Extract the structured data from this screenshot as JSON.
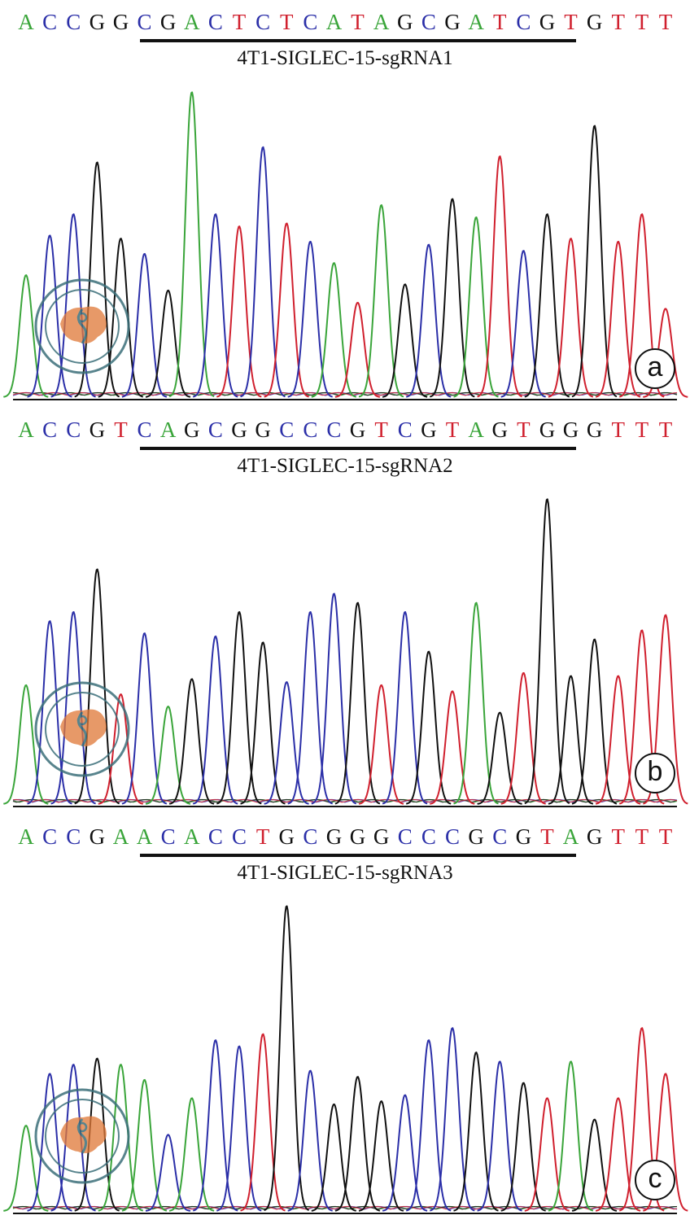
{
  "base_colors": {
    "A": "#3aa53a",
    "C": "#2b2fa8",
    "G": "#111111",
    "T": "#d0202e"
  },
  "seal_colors": {
    "ring": "#3b6f7a",
    "map": "#e07a3a"
  },
  "chart_data": [
    {
      "type": "line",
      "panel_label": "a",
      "sequence": "ACCGGCGACTCTCATAGCGATCGTGTTT",
      "sgrna_label": "4T1-SIGLEC-15-sgRNA1",
      "underline_bases": [
        5,
        23
      ],
      "peaks": [
        {
          "base": "A",
          "h": 0.4
        },
        {
          "base": "C",
          "h": 0.53
        },
        {
          "base": "C",
          "h": 0.6
        },
        {
          "base": "G",
          "h": 0.77
        },
        {
          "base": "G",
          "h": 0.52
        },
        {
          "base": "C",
          "h": 0.47
        },
        {
          "base": "G",
          "h": 0.35
        },
        {
          "base": "A",
          "h": 1.0
        },
        {
          "base": "C",
          "h": 0.6
        },
        {
          "base": "T",
          "h": 0.56
        },
        {
          "base": "C",
          "h": 0.82
        },
        {
          "base": "T",
          "h": 0.57
        },
        {
          "base": "C",
          "h": 0.51
        },
        {
          "base": "A",
          "h": 0.44
        },
        {
          "base": "T",
          "h": 0.31
        },
        {
          "base": "A",
          "h": 0.63
        },
        {
          "base": "G",
          "h": 0.37
        },
        {
          "base": "C",
          "h": 0.5
        },
        {
          "base": "G",
          "h": 0.65
        },
        {
          "base": "A",
          "h": 0.59
        },
        {
          "base": "T",
          "h": 0.79
        },
        {
          "base": "C",
          "h": 0.48
        },
        {
          "base": "G",
          "h": 0.6
        },
        {
          "base": "T",
          "h": 0.52
        },
        {
          "base": "G",
          "h": 0.89
        },
        {
          "base": "T",
          "h": 0.51
        },
        {
          "base": "T",
          "h": 0.6
        },
        {
          "base": "T",
          "h": 0.29
        }
      ]
    },
    {
      "type": "line",
      "panel_label": "b",
      "sequence": "ACCGTCAGCGGCCCGTCGTAGTGGGTTT",
      "sgrna_label": "4T1-SIGLEC-15-sgRNA2",
      "underline_bases": [
        5,
        23
      ],
      "peaks": [
        {
          "base": "A",
          "h": 0.39
        },
        {
          "base": "C",
          "h": 0.6
        },
        {
          "base": "C",
          "h": 0.63
        },
        {
          "base": "G",
          "h": 0.77
        },
        {
          "base": "T",
          "h": 0.36
        },
        {
          "base": "C",
          "h": 0.56
        },
        {
          "base": "A",
          "h": 0.32
        },
        {
          "base": "G",
          "h": 0.41
        },
        {
          "base": "C",
          "h": 0.55
        },
        {
          "base": "G",
          "h": 0.63
        },
        {
          "base": "G",
          "h": 0.53
        },
        {
          "base": "C",
          "h": 0.4
        },
        {
          "base": "C",
          "h": 0.63
        },
        {
          "base": "C",
          "h": 0.69
        },
        {
          "base": "G",
          "h": 0.66
        },
        {
          "base": "T",
          "h": 0.39
        },
        {
          "base": "C",
          "h": 0.63
        },
        {
          "base": "G",
          "h": 0.5
        },
        {
          "base": "T",
          "h": 0.37
        },
        {
          "base": "A",
          "h": 0.66
        },
        {
          "base": "G",
          "h": 0.3
        },
        {
          "base": "T",
          "h": 0.43
        },
        {
          "base": "G",
          "h": 1.0
        },
        {
          "base": "G",
          "h": 0.42
        },
        {
          "base": "G",
          "h": 0.54
        },
        {
          "base": "T",
          "h": 0.42
        },
        {
          "base": "T",
          "h": 0.57
        },
        {
          "base": "T",
          "h": 0.62
        }
      ]
    },
    {
      "type": "line",
      "panel_label": "c",
      "sequence": "ACCGAACACCTGCGGGCCCGCGTAGTTT",
      "sgrna_label": "4T1-SIGLEC-15-sgRNA3",
      "underline_bases": [
        5,
        23
      ],
      "peaks": [
        {
          "base": "A",
          "h": 0.28
        },
        {
          "base": "C",
          "h": 0.45
        },
        {
          "base": "C",
          "h": 0.48
        },
        {
          "base": "G",
          "h": 0.5
        },
        {
          "base": "A",
          "h": 0.48
        },
        {
          "base": "A",
          "h": 0.43
        },
        {
          "base": "C",
          "h": 0.25
        },
        {
          "base": "A",
          "h": 0.37
        },
        {
          "base": "C",
          "h": 0.56
        },
        {
          "base": "C",
          "h": 0.54
        },
        {
          "base": "T",
          "h": 0.58
        },
        {
          "base": "G",
          "h": 1.0
        },
        {
          "base": "C",
          "h": 0.46
        },
        {
          "base": "G",
          "h": 0.35
        },
        {
          "base": "G",
          "h": 0.44
        },
        {
          "base": "G",
          "h": 0.36
        },
        {
          "base": "C",
          "h": 0.38
        },
        {
          "base": "C",
          "h": 0.56
        },
        {
          "base": "C",
          "h": 0.6
        },
        {
          "base": "G",
          "h": 0.52
        },
        {
          "base": "C",
          "h": 0.49
        },
        {
          "base": "G",
          "h": 0.42
        },
        {
          "base": "T",
          "h": 0.37
        },
        {
          "base": "A",
          "h": 0.49
        },
        {
          "base": "G",
          "h": 0.3
        },
        {
          "base": "T",
          "h": 0.37
        },
        {
          "base": "T",
          "h": 0.6
        },
        {
          "base": "T",
          "h": 0.45
        }
      ]
    }
  ]
}
